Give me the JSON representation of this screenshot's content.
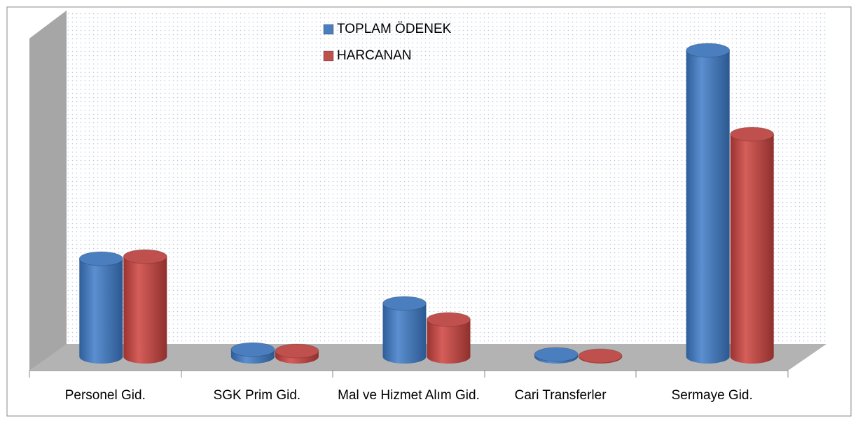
{
  "chart_data": {
    "type": "bar3d",
    "categories": [
      "Personel Gid.",
      "SGK  Prim Gid.",
      "Mal ve Hizmet Alım Gid.",
      "Cari Transferler",
      "Sermaye Gid."
    ],
    "series": [
      {
        "name": "TOPLAM ÖDENEK",
        "color": "#4a7ebf",
        "values": [
          140,
          10,
          76,
          3,
          438
        ]
      },
      {
        "name": "HARCANAN",
        "color": "#c0504d",
        "values": [
          143,
          8,
          53,
          1,
          318
        ]
      }
    ]
  }
}
